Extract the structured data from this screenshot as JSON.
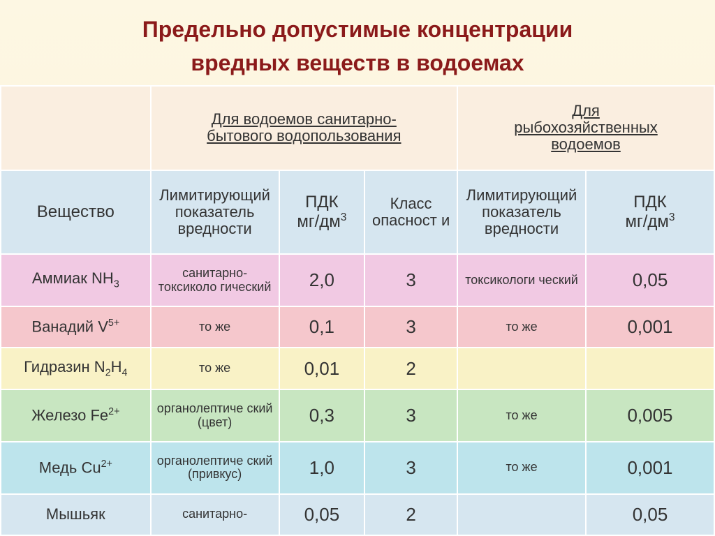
{
  "title_line1": "Предельно допустимые концентрации",
  "title_line2": "вредных веществ в водоемах",
  "headers": {
    "group1_line1": "Для водоемов санитарно-",
    "group1_line2": "бытового водопользования",
    "group2_line1": "Для",
    "group2_line2": "рыбохозяйственных",
    "group2_line3": "водоемов",
    "substance": "Вещество",
    "limiting": "Лимитирующий показатель вредности",
    "pdk": "ПДК",
    "pdk_unit": "мг/дм",
    "hazard": "Класс опасност и"
  },
  "rows": [
    {
      "bg": "#f1c9e3",
      "name_text": "Аммиак NH",
      "name_sub": "3",
      "lim1": "санитарно-токсиколо гический",
      "pdk1": "2,0",
      "haz": "3",
      "lim2": "токсикологи ческий",
      "pdk2": "0,05"
    },
    {
      "bg": "#f5c7cc",
      "name_text": "Ванадий V",
      "name_sup": "5+",
      "lim1": "то же",
      "pdk1": "0,1",
      "haz": "3",
      "lim2": "то же",
      "pdk2": "0,001"
    },
    {
      "bg": "#f9f2c6",
      "name_text": "Гидразин N",
      "name_sub": "2",
      "name_text2": "H",
      "name_sub2": "4",
      "lim1": "то же",
      "pdk1": "0,01",
      "haz": "2",
      "lim2": "",
      "pdk2": ""
    },
    {
      "bg": "#c8e6c1",
      "name_text": "Железо Fe",
      "name_sup": "2+",
      "lim1": "органолептиче ский (цвет)",
      "pdk1": "0,3",
      "haz": "3",
      "lim2": "то же",
      "pdk2": "0,005"
    },
    {
      "bg": "#bde4ec",
      "name_text": "Медь Cu",
      "name_sup": "2+",
      "lim1": "органолептиче ский (привкус)",
      "pdk1": "1,0",
      "haz": "3",
      "lim2": "то же",
      "pdk2": "0,001"
    },
    {
      "bg": "#d6e6f0",
      "name_text": "Мышьяк",
      "lim1": "санитарно-",
      "pdk1": "0,05",
      "haz": "2",
      "lim2": "",
      "pdk2": "0,05"
    }
  ],
  "colors": {
    "title": "#8b1a1a",
    "slide_bg_top": "#fdf7e3",
    "slide_bg_bottom": "#fbf3d6",
    "hdr_empty": "#faeee0",
    "hdr_sub": "#d6e6f0",
    "border": "#ffffff"
  },
  "col_widths_pct": [
    21,
    18,
    12,
    13,
    18,
    18
  ]
}
